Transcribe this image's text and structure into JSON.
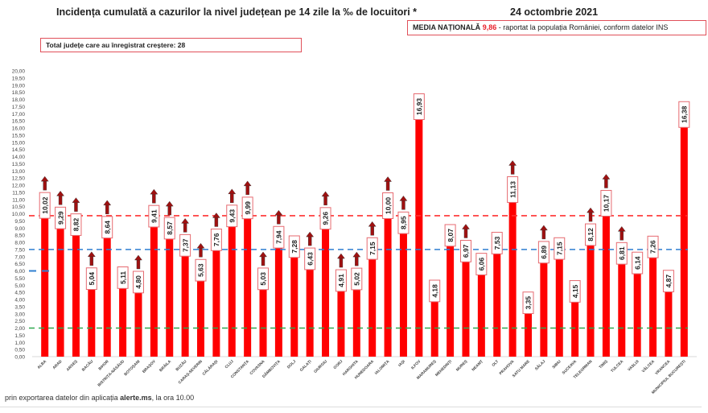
{
  "header": {
    "title": "Incidența cumulată a cazurilor la nivel județean pe 14 zile la ‰ de locuitori *",
    "date": "24 octombrie 2021"
  },
  "info_boxes": {
    "increase_count_label": "Total județe care au înregistrat creștere:  28",
    "national_label": "MEDIA NAȚIONALĂ",
    "national_value": "9,86",
    "national_rest": " -  raportat la populația României, conform datelor INS"
  },
  "footer": {
    "prefix": "prin exportarea datelor din aplicația ",
    "app": "alerte.ms",
    "suffix": ", la ora 10.00"
  },
  "chart_data": {
    "type": "bar",
    "title": "Incidența cumulată a cazurilor la nivel județean pe 14 zile la ‰ de locuitori *",
    "xlabel": "",
    "ylabel": "",
    "ylim": [
      0,
      20
    ],
    "ytick_step": 0.5,
    "ytick_labels": [
      "0,00",
      "0,50",
      "1,00",
      "1,50",
      "2,00",
      "2,50",
      "3,00",
      "3,50",
      "4,00",
      "4,50",
      "5,00",
      "5,50",
      "6,00",
      "6,50",
      "7,00",
      "7,50",
      "8,00",
      "8,50",
      "9,00",
      "9,50",
      "10,00",
      "10,50",
      "11,00",
      "11,50",
      "12,00",
      "12,50",
      "13,00",
      "13,50",
      "14,00",
      "14,50",
      "15,00",
      "15,50",
      "16,00",
      "16,50",
      "17,00",
      "17,50",
      "18,00",
      "18,50",
      "19,00",
      "19,50",
      "20,00"
    ],
    "grid": false,
    "bar_color": "#ff0000",
    "arrow_color": "#a01010",
    "categories": [
      "ALBA",
      "ARAD",
      "ARGEȘ",
      "BACĂU",
      "BIHOR",
      "BISTRIȚA-NĂSĂUD",
      "BOTOȘANI",
      "BRAȘOV",
      "BRĂILA",
      "BUZĂU",
      "CARAȘ-SEVERIN",
      "CĂLĂRAȘI",
      "CLUJ",
      "CONSTANȚA",
      "COVASNA",
      "DÂMBOVIȚA",
      "DOLJ",
      "GALAȚI",
      "GIURGIU",
      "GORJ",
      "HARGHITA",
      "HUNEDOARA",
      "IALOMIȚA",
      "IAȘI",
      "ILFOV",
      "MARAMUREȘ",
      "MEHEDINȚI",
      "MUREȘ",
      "NEAMȚ",
      "OLT",
      "PRAHOVA",
      "SATU MARE",
      "SĂLAJ",
      "SIBIU",
      "SUCEAVA",
      "TELEORMAN",
      "TIMIȘ",
      "TULCEA",
      "VASLUI",
      "VÂLCEA",
      "VRANCEA",
      "MUNICIPIUL BUCUREȘTI"
    ],
    "values": [
      10.02,
      9.29,
      8.82,
      5.04,
      8.64,
      5.11,
      4.8,
      9.41,
      8.57,
      7.37,
      5.63,
      7.76,
      9.43,
      9.99,
      5.03,
      7.94,
      7.28,
      6.43,
      9.26,
      4.91,
      5.02,
      7.15,
      10.0,
      8.95,
      16.93,
      4.18,
      8.07,
      6.97,
      6.06,
      7.53,
      11.13,
      3.35,
      6.89,
      7.15,
      4.15,
      8.12,
      10.17,
      6.81,
      6.14,
      7.26,
      4.87,
      16.38
    ],
    "value_labels": [
      "10,02",
      "9,29",
      "8,82",
      "5,04",
      "8,64",
      "5,11",
      "4,80",
      "9,41",
      "8,57",
      "7,37",
      "5,63",
      "7,76",
      "9,43",
      "9,99",
      "5,03",
      "7,94",
      "7,28",
      "6,43",
      "9,26",
      "4,91",
      "5,02",
      "7,15",
      "10,00",
      "8,95",
      "16,93",
      "4,18",
      "8,07",
      "6,97",
      "6,06",
      "7,53",
      "11,13",
      "3,35",
      "6,89",
      "7,15",
      "4,15",
      "8,12",
      "10,17",
      "6,81",
      "6,14",
      "7,26",
      "4,87",
      "16,38"
    ],
    "increasing": [
      true,
      true,
      true,
      true,
      true,
      false,
      true,
      true,
      true,
      true,
      true,
      true,
      true,
      true,
      true,
      true,
      false,
      true,
      true,
      true,
      true,
      true,
      true,
      true,
      false,
      false,
      false,
      true,
      false,
      false,
      true,
      false,
      true,
      false,
      false,
      true,
      true,
      true,
      false,
      false,
      false,
      false
    ],
    "reference_lines": [
      {
        "name": "national-average",
        "value": 9.86,
        "color": "#ff3030",
        "style": "dashed"
      },
      {
        "name": "threshold-7.5",
        "value": 7.5,
        "color": "#2f7fd0",
        "style": "dashed"
      },
      {
        "name": "threshold-2",
        "value": 2.0,
        "color": "#2fa84f",
        "style": "dashed"
      },
      {
        "name": "marker-6",
        "value": 6.0,
        "color": "#2f7fd0",
        "style": "dashed-short"
      }
    ]
  }
}
